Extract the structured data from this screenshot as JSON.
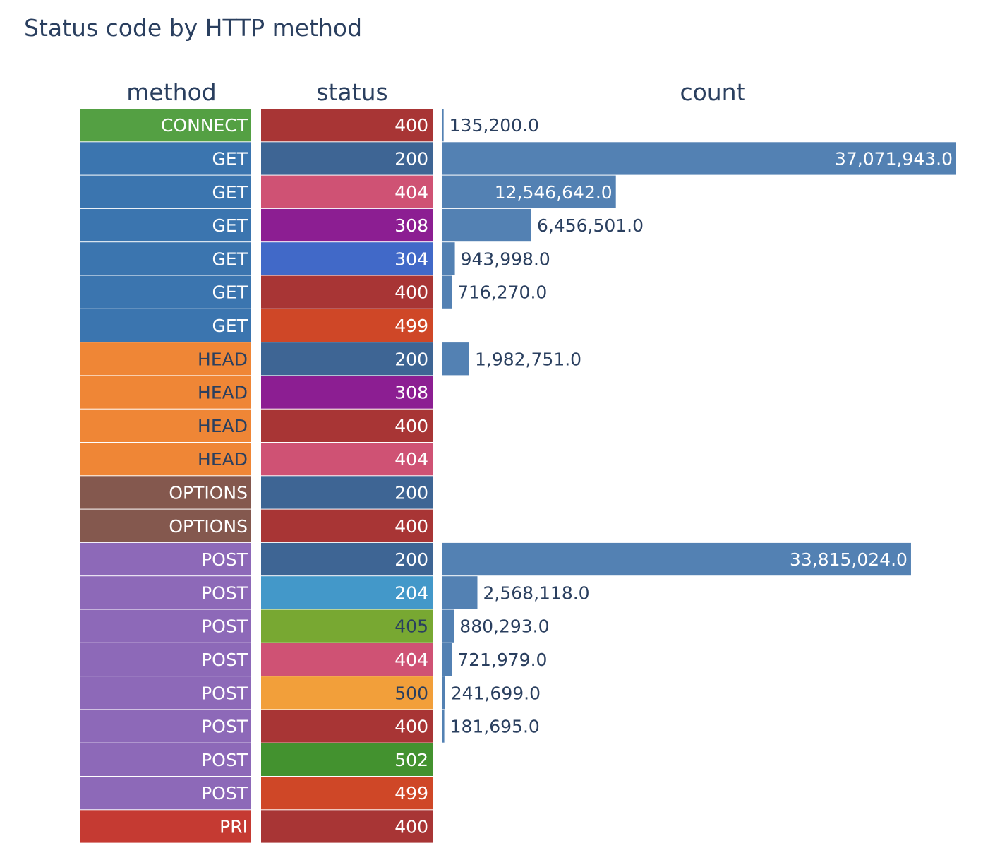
{
  "chart_data": {
    "type": "bar",
    "title": "Status code by HTTP method",
    "columns": [
      "method",
      "status",
      "count"
    ],
    "rows": [
      {
        "method": "CONNECT",
        "status": "400",
        "count": 135200.0
      },
      {
        "method": "GET",
        "status": "200",
        "count": 37071943.0
      },
      {
        "method": "GET",
        "status": "404",
        "count": 12546642.0
      },
      {
        "method": "GET",
        "status": "308",
        "count": 6456501.0
      },
      {
        "method": "GET",
        "status": "304",
        "count": 943998.0
      },
      {
        "method": "GET",
        "status": "400",
        "count": 716270.0
      },
      {
        "method": "GET",
        "status": "499",
        "count": null
      },
      {
        "method": "HEAD",
        "status": "200",
        "count": 1982751.0
      },
      {
        "method": "HEAD",
        "status": "308",
        "count": null
      },
      {
        "method": "HEAD",
        "status": "400",
        "count": null
      },
      {
        "method": "HEAD",
        "status": "404",
        "count": null
      },
      {
        "method": "OPTIONS",
        "status": "200",
        "count": null
      },
      {
        "method": "OPTIONS",
        "status": "400",
        "count": null
      },
      {
        "method": "POST",
        "status": "200",
        "count": 33815024.0
      },
      {
        "method": "POST",
        "status": "204",
        "count": 2568118.0
      },
      {
        "method": "POST",
        "status": "405",
        "count": 880293.0
      },
      {
        "method": "POST",
        "status": "404",
        "count": 721979.0
      },
      {
        "method": "POST",
        "status": "500",
        "count": 241699.0
      },
      {
        "method": "POST",
        "status": "400",
        "count": 181695.0
      },
      {
        "method": "POST",
        "status": "502",
        "count": null
      },
      {
        "method": "POST",
        "status": "499",
        "count": null
      },
      {
        "method": "PRI",
        "status": "400",
        "count": null
      }
    ],
    "method_colors": {
      "CONNECT": "#54a043",
      "GET": "#3b75af",
      "HEAD": "#ef8636",
      "OPTIONS": "#84584e",
      "POST": "#8d69b8",
      "PRI": "#c53a32"
    },
    "method_text_colors": {
      "CONNECT": "#ffffff",
      "GET": "#ffffff",
      "HEAD": "#2a3f5f",
      "OPTIONS": "#ffffff",
      "POST": "#ffffff",
      "PRI": "#ffffff"
    },
    "status_colors": {
      "200": "#3e6594",
      "204": "#4398c9",
      "304": "#4169c8",
      "308": "#8c1e92",
      "400": "#a83535",
      "404": "#cf5274",
      "405": "#78a832",
      "499": "#cf4727",
      "500": "#f29f3a",
      "502": "#43922f"
    },
    "status_text_colors": {
      "200": "#ffffff",
      "204": "#ffffff",
      "304": "#ffffff",
      "308": "#ffffff",
      "400": "#ffffff",
      "404": "#ffffff",
      "405": "#2a3f5f",
      "499": "#ffffff",
      "500": "#2a3f5f",
      "502": "#ffffff"
    },
    "bar_color": "#5381b3",
    "count_max": 37071943.0,
    "value_format": "#,##0.0"
  }
}
